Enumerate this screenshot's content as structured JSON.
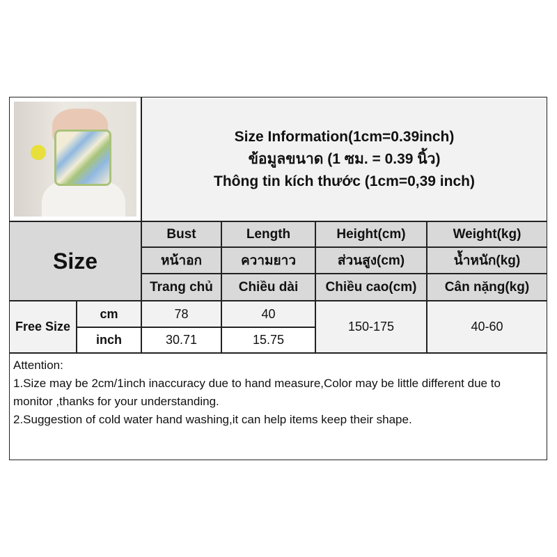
{
  "title": {
    "line1": "Size Information(1cm=0.39inch)",
    "line2": "ข้อมูลขนาด (1 ซม. = 0.39 นิ้ว)",
    "line3": "Thông tin kích thước (1cm=0,39 inch)"
  },
  "size_label": "Size",
  "columns": [
    {
      "en": "Bust",
      "th": "หน้าอก",
      "vi": "Trang chủ"
    },
    {
      "en": "Length",
      "th": "ความยาว",
      "vi": "Chiều dài"
    },
    {
      "en": "Height(cm)",
      "th": "ส่วนสูง(cm)",
      "vi": "Chiều cao(cm)"
    },
    {
      "en": "Weight(kg)",
      "th": "น้ำหนัก(kg)",
      "vi": "Cân nặng(kg)"
    }
  ],
  "rows": {
    "size": "Free Size",
    "cm": {
      "unit": "cm",
      "bust": "78",
      "length": "40"
    },
    "inch": {
      "unit": "inch",
      "bust": "30.71",
      "length": "15.75"
    },
    "height": "150-175",
    "weight": "40-60"
  },
  "attention": {
    "heading": "Attention:",
    "line1": "1.Size may be 2cm/1inch inaccuracy due to hand measure,Color may be little different due to monitor ,thanks for your understanding.",
    "line2": "2.Suggestion of cold water hand washing,it can help items keep their shape."
  }
}
